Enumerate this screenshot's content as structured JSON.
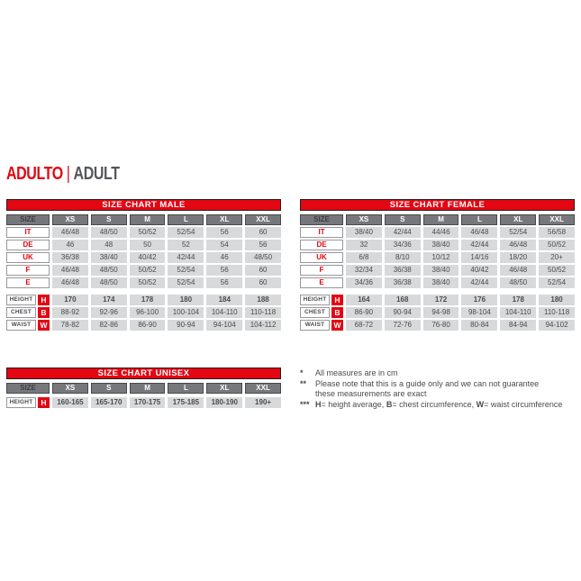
{
  "title": {
    "primary": "ADULTO",
    "separator": "|",
    "secondary": "ADULT"
  },
  "colors": {
    "accent_red": "#e30613",
    "dark_text": "#54565b",
    "header_gray": "#77787b",
    "cell_gray": "#d8d9da"
  },
  "size_columns": [
    "XS",
    "S",
    "M",
    "L",
    "XL",
    "XXL"
  ],
  "tables": [
    {
      "id": "male",
      "title": "SIZE CHART MALE",
      "size_label": "SIZE",
      "size_rows": [
        {
          "label": "IT",
          "values": [
            "46/48",
            "48/50",
            "50/52",
            "52/54",
            "56",
            "60"
          ]
        },
        {
          "label": "DE",
          "values": [
            "46",
            "48",
            "50",
            "52",
            "54",
            "56"
          ]
        },
        {
          "label": "UK",
          "values": [
            "36/38",
            "38/40",
            "40/42",
            "42/44",
            "46",
            "48/50"
          ]
        },
        {
          "label": "F",
          "values": [
            "46/48",
            "48/50",
            "50/52",
            "52/54",
            "56",
            "60"
          ]
        },
        {
          "label": "E",
          "values": [
            "46/48",
            "48/50",
            "50/52",
            "52/54",
            "56",
            "60"
          ]
        }
      ],
      "measure_rows": [
        {
          "label": "HEIGHT",
          "badge": "H",
          "bold": true,
          "values": [
            "170",
            "174",
            "178",
            "180",
            "184",
            "188"
          ]
        },
        {
          "label": "CHEST",
          "badge": "B",
          "bold": false,
          "values": [
            "88-92",
            "92-96",
            "96-100",
            "100-104",
            "104-110",
            "110-118"
          ]
        },
        {
          "label": "WAIST",
          "badge": "W",
          "bold": false,
          "values": [
            "78-82",
            "82-86",
            "86-90",
            "90-94",
            "94-104",
            "104-112"
          ]
        }
      ]
    },
    {
      "id": "female",
      "title": "SIZE CHART FEMALE",
      "size_label": "SIZE",
      "size_rows": [
        {
          "label": "IT",
          "values": [
            "38/40",
            "42/44",
            "44/46",
            "46/48",
            "52/54",
            "56/58"
          ]
        },
        {
          "label": "DE",
          "values": [
            "32",
            "34/36",
            "38/40",
            "42/44",
            "46/48",
            "50/52"
          ]
        },
        {
          "label": "UK",
          "values": [
            "6/8",
            "8/10",
            "10/12",
            "14/16",
            "18/20",
            "20+"
          ]
        },
        {
          "label": "F",
          "values": [
            "32/34",
            "36/38",
            "38/40",
            "40/42",
            "46/48",
            "50/52"
          ]
        },
        {
          "label": "E",
          "values": [
            "34/36",
            "36/38",
            "38/40",
            "42/44",
            "48/50",
            "52/54"
          ]
        }
      ],
      "measure_rows": [
        {
          "label": "HEIGHT",
          "badge": "H",
          "bold": true,
          "values": [
            "164",
            "168",
            "172",
            "176",
            "178",
            "180"
          ]
        },
        {
          "label": "CHEST",
          "badge": "B",
          "bold": false,
          "values": [
            "86-90",
            "90-94",
            "94-98",
            "98-104",
            "104-110",
            "110-118"
          ]
        },
        {
          "label": "WAIST",
          "badge": "W",
          "bold": false,
          "values": [
            "68-72",
            "72-76",
            "76-80",
            "80-84",
            "84-94",
            "94-102"
          ]
        }
      ]
    },
    {
      "id": "unisex",
      "title": "SIZE CHART UNISEX",
      "size_label": "SIZE",
      "size_rows": [],
      "measure_rows": [
        {
          "label": "HEIGHT",
          "badge": "H",
          "bold": true,
          "values": [
            "160-165",
            "165-170",
            "170-175",
            "175-185",
            "180-190",
            "190+"
          ]
        }
      ]
    }
  ],
  "footnotes": [
    {
      "marker": "*",
      "segments": [
        {
          "text": "All measures are in cm",
          "bold": false
        }
      ]
    },
    {
      "marker": "**",
      "segments": [
        {
          "text": "Please note that this is a guide only and we can not guarantee\nthese measurements are exact",
          "bold": false
        }
      ]
    },
    {
      "marker": "***",
      "segments": [
        {
          "text": "H",
          "bold": true
        },
        {
          "text": "= height average, ",
          "bold": false
        },
        {
          "text": "B",
          "bold": true
        },
        {
          "text": "= chest circumference, ",
          "bold": false
        },
        {
          "text": "W",
          "bold": true
        },
        {
          "text": "= waist circumference",
          "bold": false
        }
      ]
    }
  ]
}
